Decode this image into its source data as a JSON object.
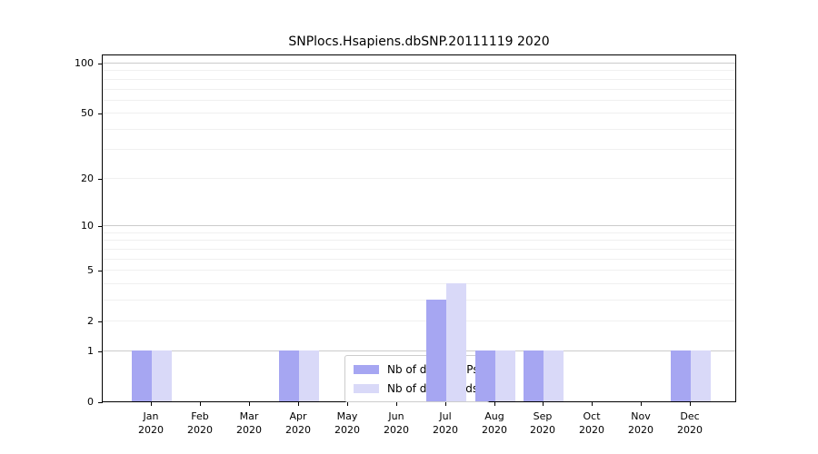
{
  "chart_data": {
    "type": "bar",
    "title": "SNPlocs.Hsapiens.dbSNP.20111119 2020",
    "xlabel": "",
    "ylabel": "",
    "year": "2020",
    "categories": [
      "Jan",
      "Feb",
      "Mar",
      "Apr",
      "May",
      "Jun",
      "Jul",
      "Aug",
      "Sep",
      "Oct",
      "Nov",
      "Dec"
    ],
    "series": [
      {
        "name": "Nb of distinct IPs",
        "color": "#a6a6f2",
        "values": [
          1,
          0,
          0,
          1,
          0,
          0,
          3,
          1,
          1,
          0,
          0,
          1
        ]
      },
      {
        "name": "Nb of downloads",
        "color": "#d9d9f8",
        "values": [
          1,
          0,
          0,
          1,
          0,
          0,
          4,
          1,
          1,
          0,
          0,
          1
        ]
      }
    ],
    "yscale": "log10(1+x)",
    "ylim": [
      0,
      113
    ],
    "yticks": [
      0,
      1,
      2,
      5,
      10,
      20,
      50,
      100
    ],
    "grid_major": [
      1,
      10,
      100
    ],
    "grid_minor": [
      2,
      3,
      4,
      5,
      6,
      7,
      8,
      9,
      20,
      30,
      40,
      50,
      60,
      70,
      80,
      90
    ],
    "grid": "on",
    "legend_position": "bottom-center",
    "colors": {
      "axis": "#000000",
      "grid_major": "#cbcbcb",
      "grid_minor": "#f0f0f0",
      "legend_border": "#cccccc"
    }
  }
}
